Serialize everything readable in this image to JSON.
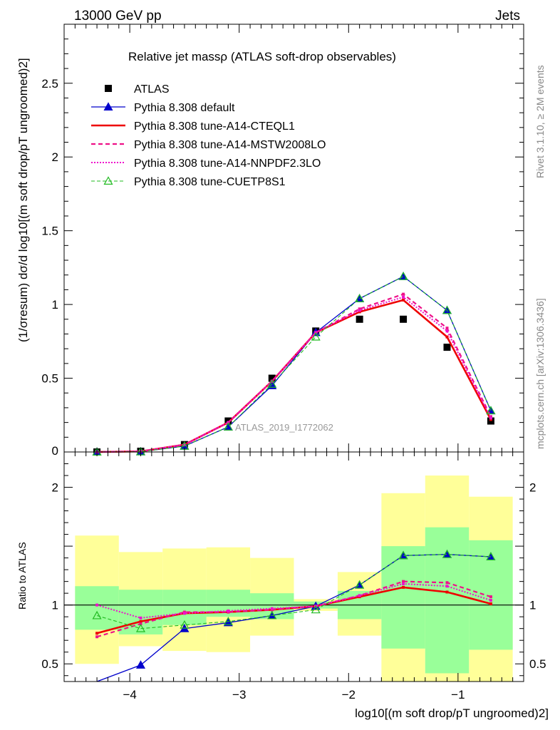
{
  "header": {
    "left": "13000 GeV pp",
    "right": "Jets"
  },
  "side_labels": {
    "rivet": "Rivet 3.1.10, ≥ 2M events",
    "mcplots": "mcplots.cern.ch [arXiv:1306.3436]"
  },
  "watermark": "ATLAS_2019_I1772062",
  "colors": {
    "data": "#000000",
    "default": "#0000cc",
    "cteq": "#ee0000",
    "mstw": "#ee1188",
    "nnpdf": "#ee11cc",
    "cuetp": "#22bb22",
    "band_outer": "#ffff99",
    "band_inner": "#99ff99"
  },
  "chart_data": [
    {
      "type": "line",
      "title": "Relative jet massρ (ATLAS soft-drop observables)",
      "ylabel": "(1/σresum) dσ/d log10[(m soft drop/pT ungroomed)2]",
      "xlim": [
        -4.6,
        -0.4
      ],
      "ylim": [
        0,
        2.9
      ],
      "yticks": [
        0.5,
        1,
        1.5,
        2,
        2.5
      ],
      "x": [
        -4.3,
        -3.9,
        -3.5,
        -3.1,
        -2.7,
        -2.3,
        -1.9,
        -1.5,
        -1.1,
        -0.7
      ],
      "legend": [
        "ATLAS",
        "Pythia 8.308 default",
        "Pythia 8.308 tune-A14-CTEQL1",
        "Pythia 8.308 tune-A14-MSTW2008LO",
        "Pythia 8.308 tune-A14-NNPDF2.3LO",
        "Pythia 8.308 tune-CUETP8S1"
      ],
      "series": [
        {
          "name": "ATLAS",
          "values": [
            0.0,
            0.005,
            0.05,
            0.21,
            0.5,
            0.82,
            0.9,
            0.9,
            0.71,
            0.21
          ]
        },
        {
          "name": "Pythia 8.308 default",
          "values": [
            0.0,
            0.002,
            0.04,
            0.17,
            0.45,
            0.81,
            1.04,
            1.19,
            0.96,
            0.28
          ]
        },
        {
          "name": "Pythia 8.308 tune-A14-CTEQL1",
          "values": [
            0.0,
            0.004,
            0.05,
            0.2,
            0.48,
            0.81,
            0.95,
            1.03,
            0.78,
            0.22
          ]
        },
        {
          "name": "Pythia 8.308 tune-A14-MSTW2008LO",
          "values": [
            0.0,
            0.004,
            0.05,
            0.2,
            0.48,
            0.81,
            0.97,
            1.07,
            0.84,
            0.24
          ]
        },
        {
          "name": "Pythia 8.308 tune-A14-NNPDF2.3LO",
          "values": [
            0.0,
            0.004,
            0.05,
            0.2,
            0.48,
            0.81,
            0.96,
            1.05,
            0.82,
            0.23
          ]
        },
        {
          "name": "Pythia 8.308 tune-CUETP8S1",
          "values": [
            0.0,
            0.002,
            0.04,
            0.17,
            0.46,
            0.78,
            1.04,
            1.19,
            0.96,
            0.28
          ]
        }
      ]
    },
    {
      "type": "line",
      "title": "",
      "xlabel": "log10[(m soft drop/pT ungroomed)2]",
      "ylabel": "Ratio to ATLAS",
      "xlim": [
        -4.6,
        -0.4
      ],
      "ylim": [
        0.35,
        2.3
      ],
      "xticks": [
        -4,
        -3,
        -2,
        -1
      ],
      "yticks": [
        0.5,
        1,
        2
      ],
      "bin_edges": [
        -4.5,
        -4.1,
        -3.7,
        -3.3,
        -2.9,
        -2.5,
        -2.1,
        -1.7,
        -1.3,
        -0.9,
        -0.5
      ],
      "band_inner": [
        [
          0.79,
          1.16
        ],
        [
          0.75,
          1.13
        ],
        [
          0.83,
          1.13
        ],
        [
          0.9,
          1.13
        ],
        [
          0.88,
          1.1
        ],
        [
          0.97,
          1.03
        ],
        [
          0.88,
          1.12
        ],
        [
          0.63,
          1.5
        ],
        [
          0.42,
          1.66
        ],
        [
          0.62,
          1.55
        ]
      ],
      "band_outer": [
        [
          0.5,
          1.59
        ],
        [
          0.65,
          1.45
        ],
        [
          0.61,
          1.48
        ],
        [
          0.6,
          1.49
        ],
        [
          0.74,
          1.4
        ],
        [
          0.95,
          1.05
        ],
        [
          0.74,
          1.28
        ],
        [
          0.35,
          1.95
        ],
        [
          0.35,
          2.1
        ],
        [
          0.35,
          1.92
        ]
      ],
      "x": [
        -4.3,
        -3.9,
        -3.5,
        -3.1,
        -2.7,
        -2.3,
        -1.9,
        -1.5,
        -1.1,
        -0.7
      ],
      "series": [
        {
          "name": "Pythia 8.308 default",
          "values": [
            null,
            0.49,
            0.8,
            0.85,
            0.91,
            0.99,
            1.17,
            1.42,
            1.43,
            1.41
          ]
        },
        {
          "name": "Pythia 8.308 tune-A14-CTEQL1",
          "values": [
            0.76,
            0.86,
            0.93,
            0.94,
            0.96,
            0.99,
            1.07,
            1.15,
            1.11,
            1.01
          ]
        },
        {
          "name": "Pythia 8.308 tune-A14-MSTW2008LO",
          "values": [
            0.73,
            0.84,
            0.94,
            0.94,
            0.96,
            0.99,
            1.08,
            1.2,
            1.19,
            1.07
          ]
        },
        {
          "name": "Pythia 8.308 tune-A14-NNPDF2.3LO",
          "values": [
            1.0,
            0.89,
            0.93,
            0.95,
            0.97,
            0.99,
            1.08,
            1.18,
            1.16,
            1.04
          ]
        },
        {
          "name": "Pythia 8.308 tune-CUETP8S1",
          "values": [
            0.91,
            0.8,
            0.83,
            0.86,
            0.91,
            0.96,
            1.17,
            1.42,
            1.43,
            1.41
          ]
        }
      ]
    }
  ]
}
